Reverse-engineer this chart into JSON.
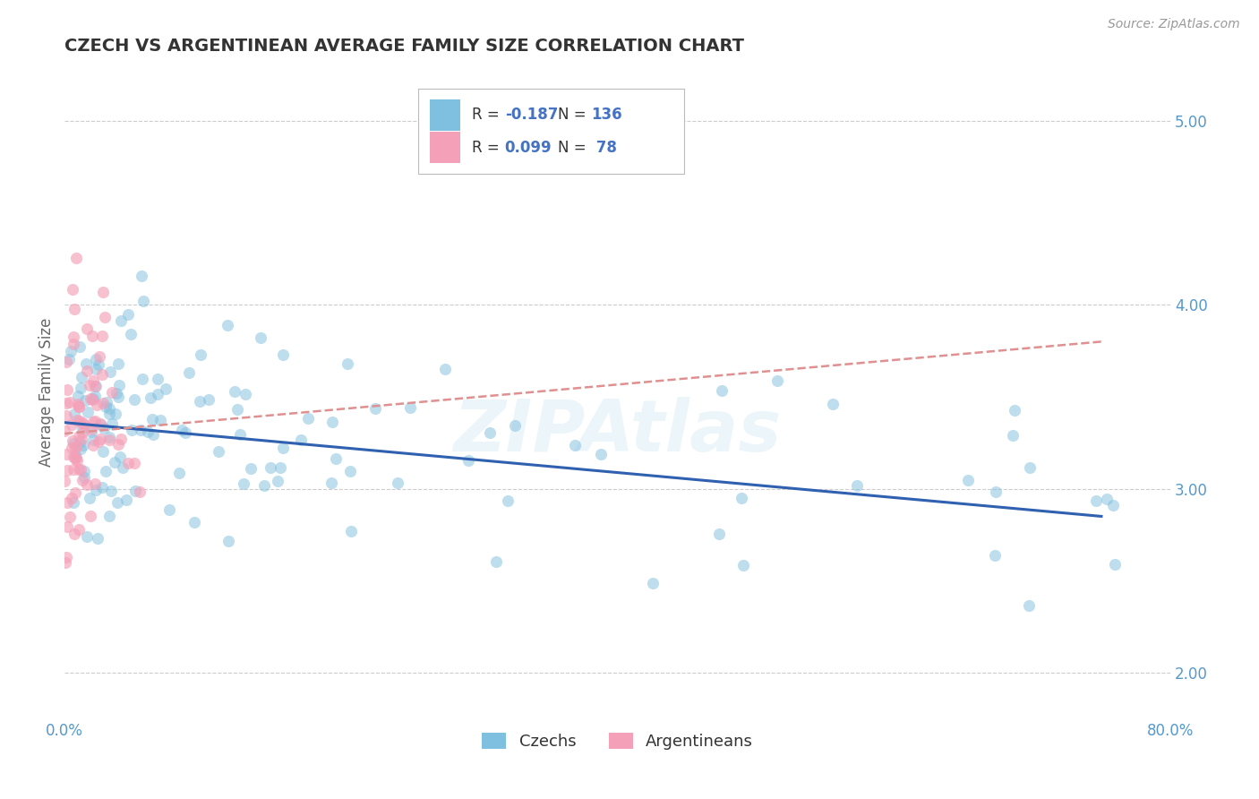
{
  "title": "CZECH VS ARGENTINEAN AVERAGE FAMILY SIZE CORRELATION CHART",
  "source": "Source: ZipAtlas.com",
  "ylabel": "Average Family Size",
  "xlim": [
    0.0,
    0.8
  ],
  "ylim": [
    1.75,
    5.3
  ],
  "yticks_right": [
    2.0,
    3.0,
    4.0,
    5.0
  ],
  "czechs_color": "#7fbfdf",
  "argentineans_color": "#f4a0b8",
  "trendline_czech_color": "#3060b0",
  "trendline_arg_color": "#e09090",
  "watermark_text": "ZIPAtlas",
  "watermark_color": "#7fbfdf",
  "background_color": "#ffffff",
  "grid_color": "#cccccc",
  "title_color": "#333333",
  "axis_label_color": "#666666",
  "tick_label_color": "#5599cc",
  "legend_number_color": "#4472c4",
  "czech_N": 136,
  "arg_N": 78,
  "czech_trend_x": [
    0.0,
    0.75
  ],
  "czech_trend_y": [
    3.36,
    2.85
  ],
  "arg_trend_x": [
    0.0,
    0.75
  ],
  "arg_trend_y": [
    3.3,
    3.8
  ],
  "seed": 42
}
